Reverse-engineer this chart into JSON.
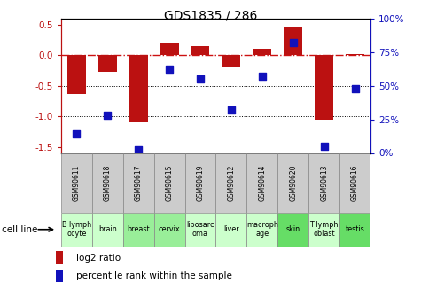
{
  "title": "GDS1835 / 286",
  "samples": [
    "GSM90611",
    "GSM90618",
    "GSM90617",
    "GSM90615",
    "GSM90619",
    "GSM90612",
    "GSM90614",
    "GSM90620",
    "GSM90613",
    "GSM90616"
  ],
  "cell_lines": [
    "B lymph\nocyte",
    "brain",
    "breast",
    "cervix",
    "liposarc\noma",
    "liver",
    "macroph\nage",
    "skin",
    "T lymph\noblast",
    "testis"
  ],
  "cell_line_colors": [
    "#ccffcc",
    "#ccffcc",
    "#99ee99",
    "#99ee99",
    "#ccffcc",
    "#ccffcc",
    "#ccffcc",
    "#66dd66",
    "#ccffcc",
    "#66dd66"
  ],
  "sample_box_color": "#cccccc",
  "log2_ratio": [
    -0.63,
    -0.28,
    -1.1,
    0.2,
    0.15,
    -0.18,
    0.1,
    0.47,
    -1.05,
    0.02
  ],
  "percentile_rank": [
    14,
    28,
    2,
    62,
    55,
    32,
    57,
    82,
    5,
    48
  ],
  "ylim_left": [
    -1.6,
    0.6
  ],
  "ylim_right": [
    0,
    100
  ],
  "left_ticks": [
    0.5,
    0.0,
    -0.5,
    -1.0,
    -1.5
  ],
  "right_ticks": [
    0,
    25,
    50,
    75,
    100
  ],
  "right_tick_labels": [
    "0%",
    "25%",
    "50%",
    "75%",
    "100%"
  ],
  "bar_color": "#bb1111",
  "dot_color": "#1111bb",
  "zero_line_color": "#cc1111",
  "hgrid_vals": [
    -0.5,
    -1.0
  ]
}
